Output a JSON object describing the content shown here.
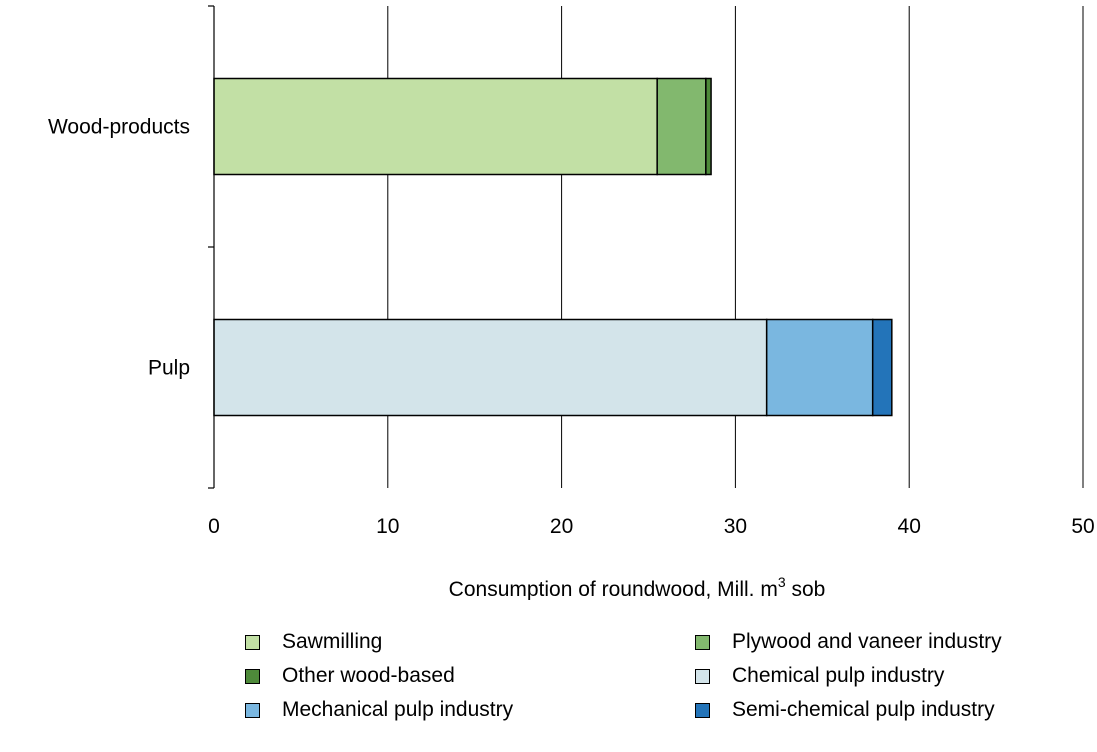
{
  "chart_data": {
    "type": "bar",
    "orientation": "horizontal",
    "stacked": true,
    "categories": [
      "Wood-products",
      "Pulp"
    ],
    "xlabel": {
      "text": "Consumption of roundwood, Mill. m",
      "sup": "3",
      "suffix": " sob"
    },
    "xlim": [
      0,
      50
    ],
    "xticks": [
      "0",
      "10",
      "20",
      "30",
      "40",
      "50"
    ],
    "grid": true,
    "legend_position": "bottom",
    "series": [
      {
        "name": "Sawmilling",
        "color": "#c2e0a5",
        "values": [
          25.5,
          0
        ]
      },
      {
        "name": "Plywood and vaneer industry",
        "color": "#82b86e",
        "values": [
          2.8,
          0
        ]
      },
      {
        "name": "Other wood-based",
        "color": "#4e8a3a",
        "values": [
          0.3,
          0
        ]
      },
      {
        "name": "Chemical pulp industry",
        "color": "#d3e4ea",
        "values": [
          0,
          31.8
        ]
      },
      {
        "name": "Mechanical pulp industry",
        "color": "#7ab7e0",
        "values": [
          0,
          6.1
        ]
      },
      {
        "name": "Semi-chemical pulp industry",
        "color": "#2374b9",
        "values": [
          0,
          1.1
        ]
      }
    ]
  }
}
